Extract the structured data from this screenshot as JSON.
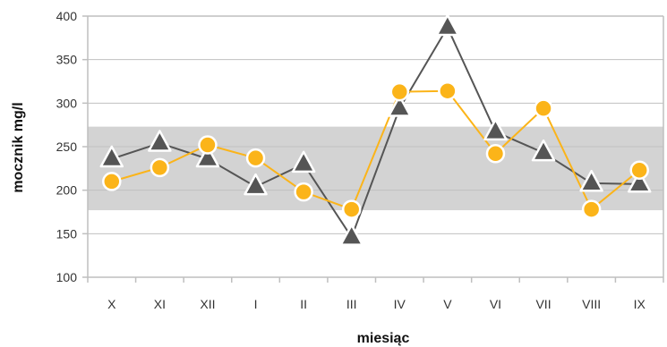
{
  "chart_data": {
    "type": "line",
    "xlabel": "miesiąc",
    "ylabel": "mocznik mg/l",
    "categories": [
      "X",
      "XI",
      "XII",
      "I",
      "II",
      "III",
      "IV",
      "V",
      "VI",
      "VII",
      "VIII",
      "IX"
    ],
    "ylim": [
      100,
      400
    ],
    "yticks": [
      100,
      150,
      200,
      250,
      300,
      350,
      400
    ],
    "grid": true,
    "reference_band": [
      177,
      273
    ],
    "series": [
      {
        "marker": "triangle",
        "color": "#555555",
        "values": [
          236,
          254,
          236,
          204,
          230,
          146,
          294,
          387,
          267,
          243,
          208,
          207
        ]
      },
      {
        "marker": "circle",
        "color": "#FBB419",
        "values": [
          210,
          226,
          252,
          237,
          198,
          178,
          313,
          314,
          242,
          294,
          178,
          223
        ]
      }
    ],
    "colors": {
      "band": "#D3D3D3",
      "grid": "#C0C0C0",
      "axis": "#BFBFBF"
    }
  }
}
